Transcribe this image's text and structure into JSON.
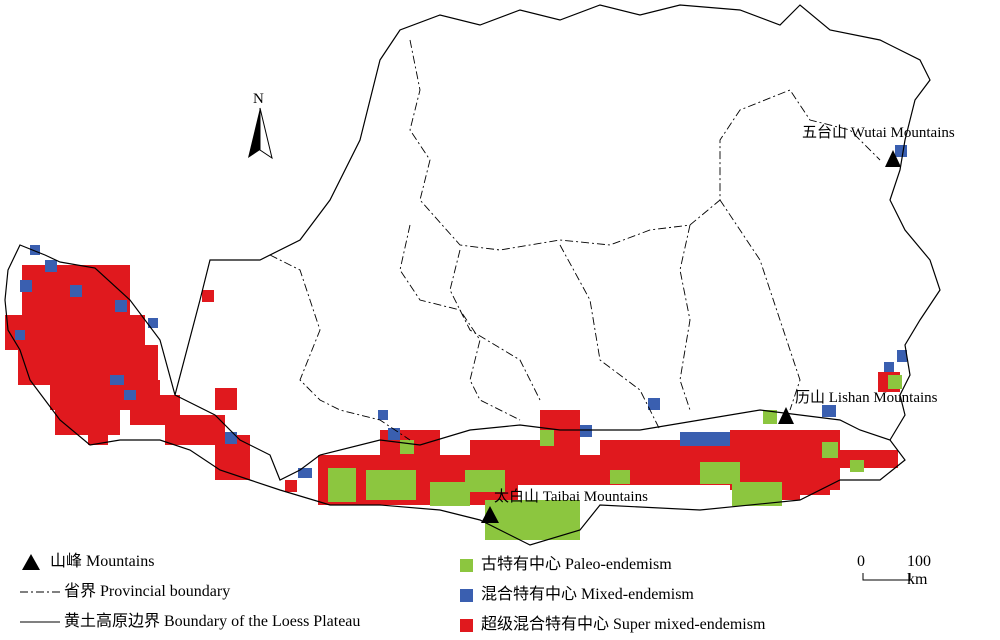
{
  "north_label": "N",
  "mountains": [
    {
      "label": "五台山 Wutai Mountains"
    },
    {
      "label": "历山 Lishan Mountains"
    },
    {
      "label": "太白山 Taibai Mountains"
    }
  ],
  "colors": {
    "paleo": "#8cc63f",
    "mixed": "#3a5fb0",
    "super": "#e0191e",
    "boundary": "#000000"
  },
  "legend_left": [
    {
      "symbol": "triangle",
      "label": "山峰 Mountains"
    },
    {
      "symbol": "dashdot",
      "label": "省界 Provincial boundary"
    },
    {
      "symbol": "solid",
      "label": "黄土高原边界 Boundary of the Loess Plateau"
    }
  ],
  "legend_right": [
    {
      "key": "paleo",
      "label": "古特有中心 Paleo-endemism"
    },
    {
      "key": "mixed",
      "label": "混合特有中心 Mixed-endemism"
    },
    {
      "key": "super",
      "label": "超级混合特有中心 Super mixed-endemism"
    }
  ],
  "scale_bar": {
    "start": "0",
    "end": "100 km"
  }
}
